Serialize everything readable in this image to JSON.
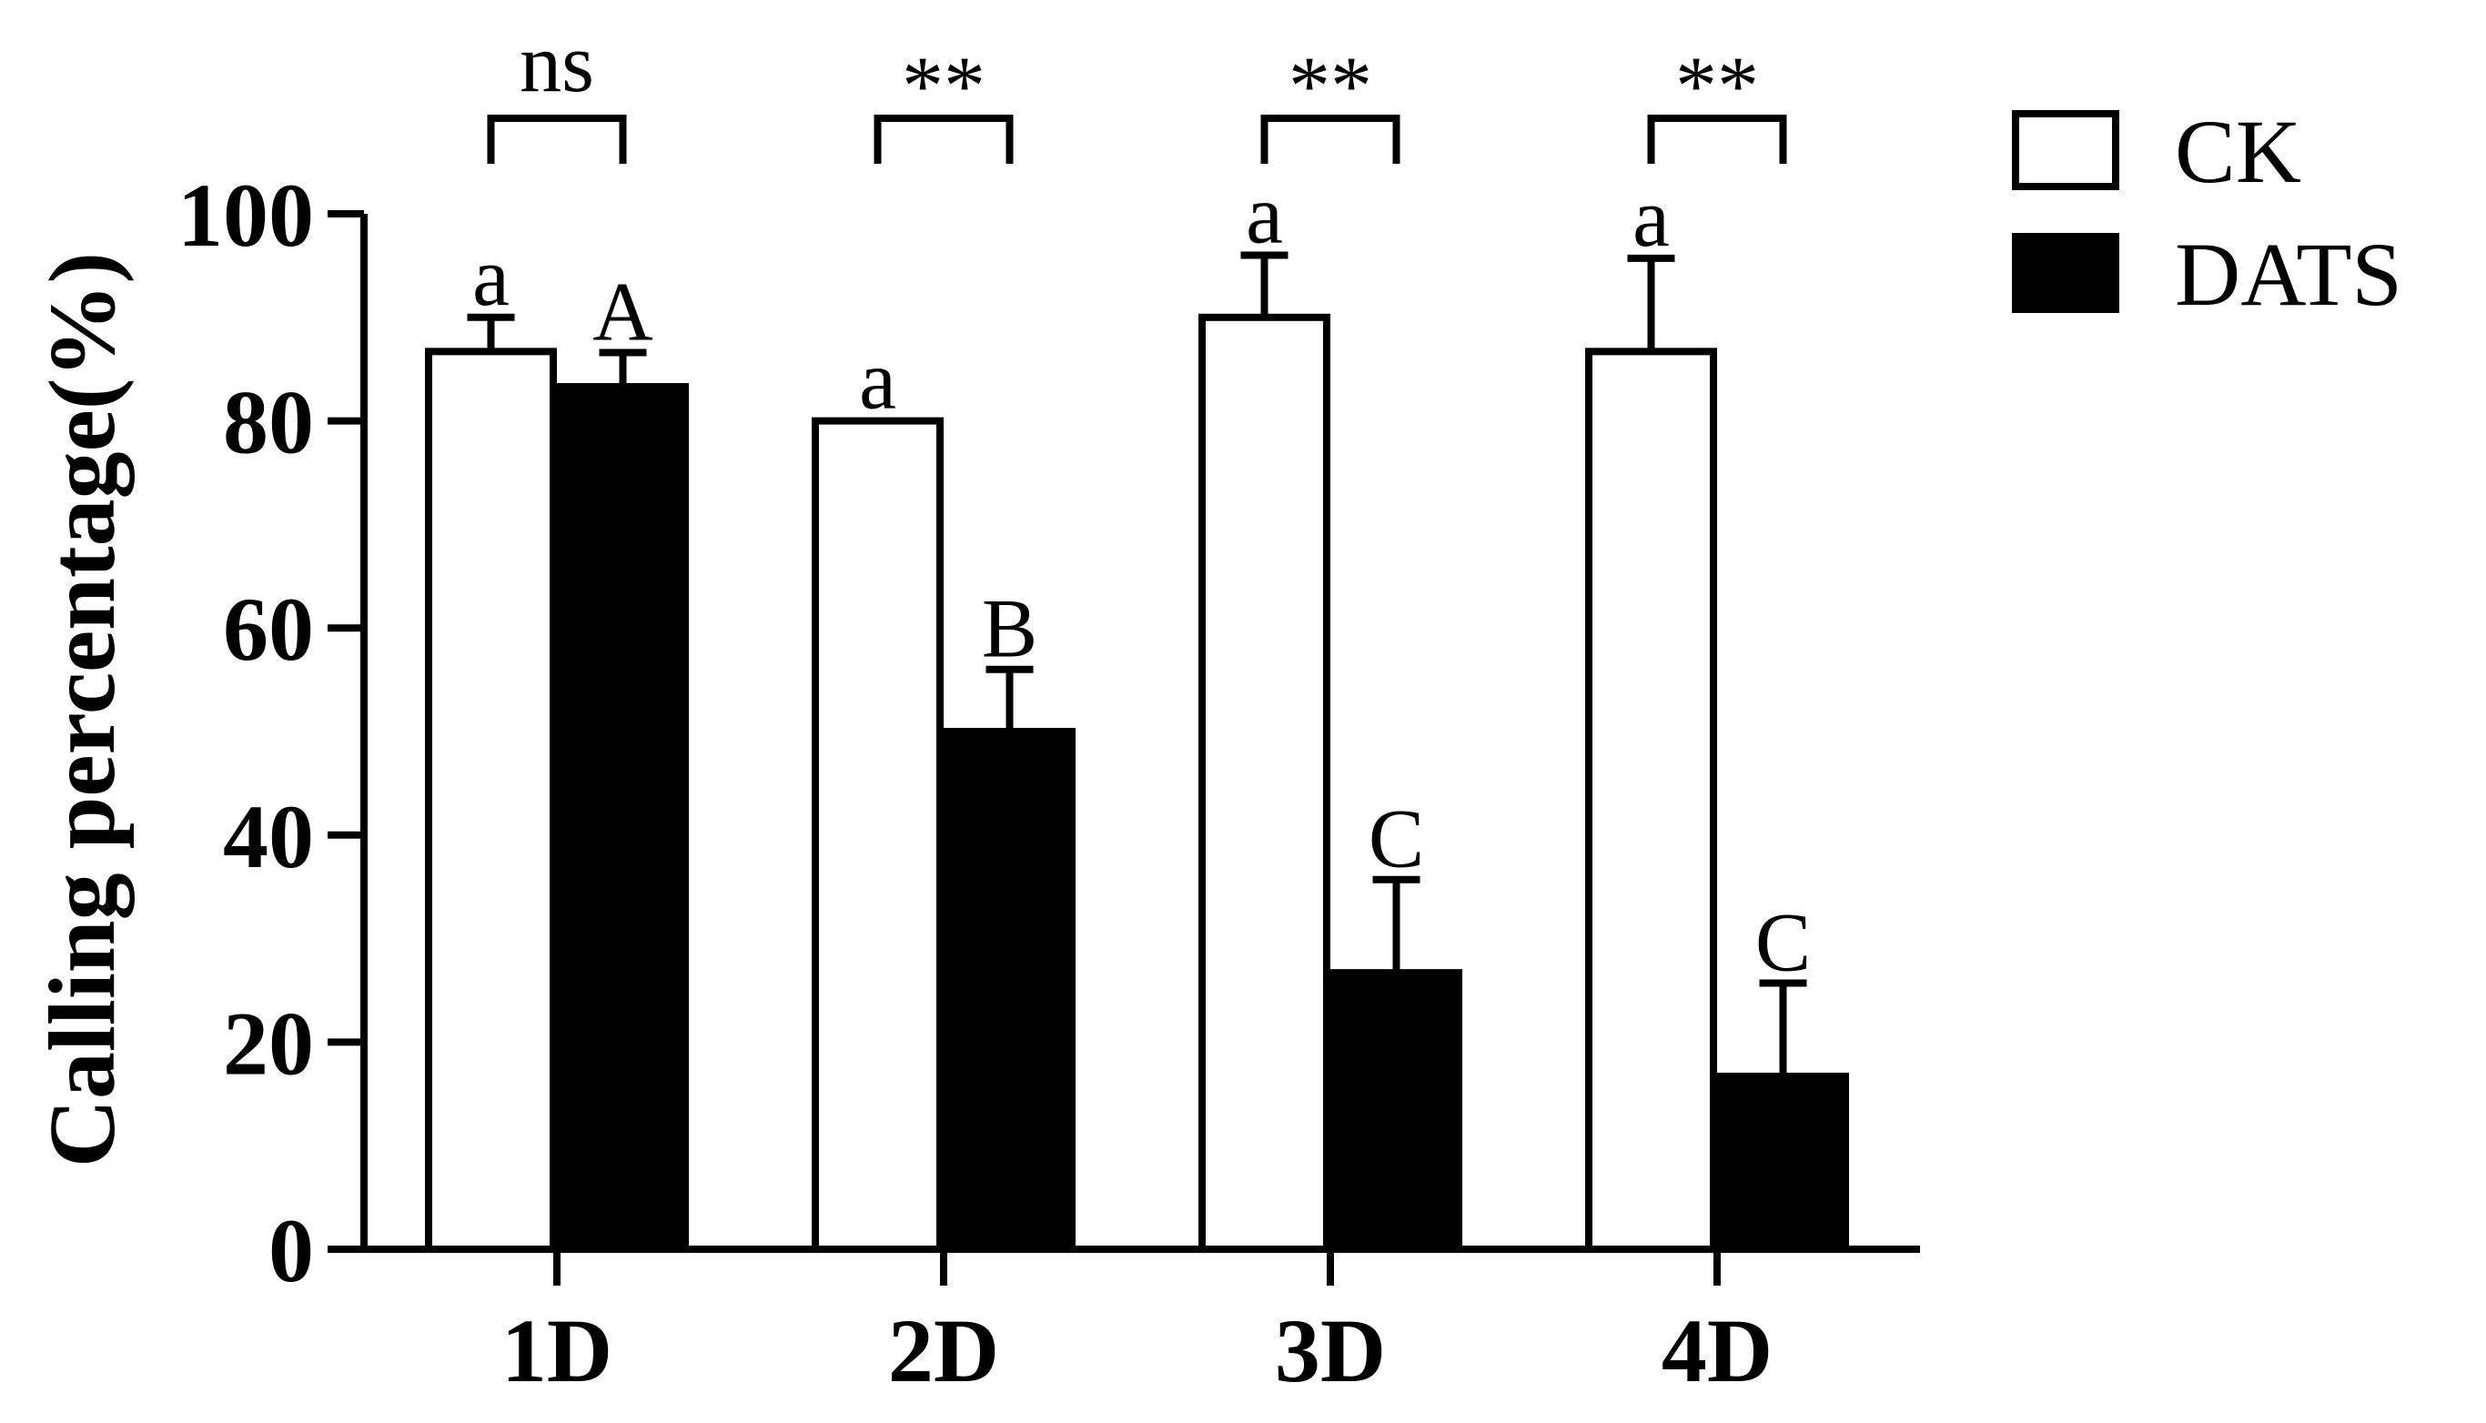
{
  "chart_data": {
    "type": "bar",
    "ylabel": "Calling percentage(%)",
    "xlabel": "",
    "ylim": [
      0,
      100
    ],
    "yticks": [
      0,
      20,
      40,
      60,
      80,
      100
    ],
    "categories": [
      "1D",
      "2D",
      "3D",
      "4D"
    ],
    "series": [
      {
        "name": "CK",
        "fill": "#ffffff",
        "values": [
          86.7,
          80.0,
          90.0,
          86.7
        ],
        "errors": [
          3.3,
          0.0,
          6.0,
          9.0
        ],
        "letters": [
          "a",
          "a",
          "a",
          "a"
        ]
      },
      {
        "name": "DATS",
        "fill": "#000000",
        "values": [
          83.3,
          50.0,
          26.7,
          16.7
        ],
        "errors": [
          3.3,
          6.0,
          9.0,
          9.0
        ],
        "letters": [
          "A",
          "B",
          "C",
          "C"
        ]
      }
    ],
    "significance": [
      "ns",
      "**",
      "**",
      "**"
    ],
    "legend_position": "top-right",
    "grid": false
  }
}
